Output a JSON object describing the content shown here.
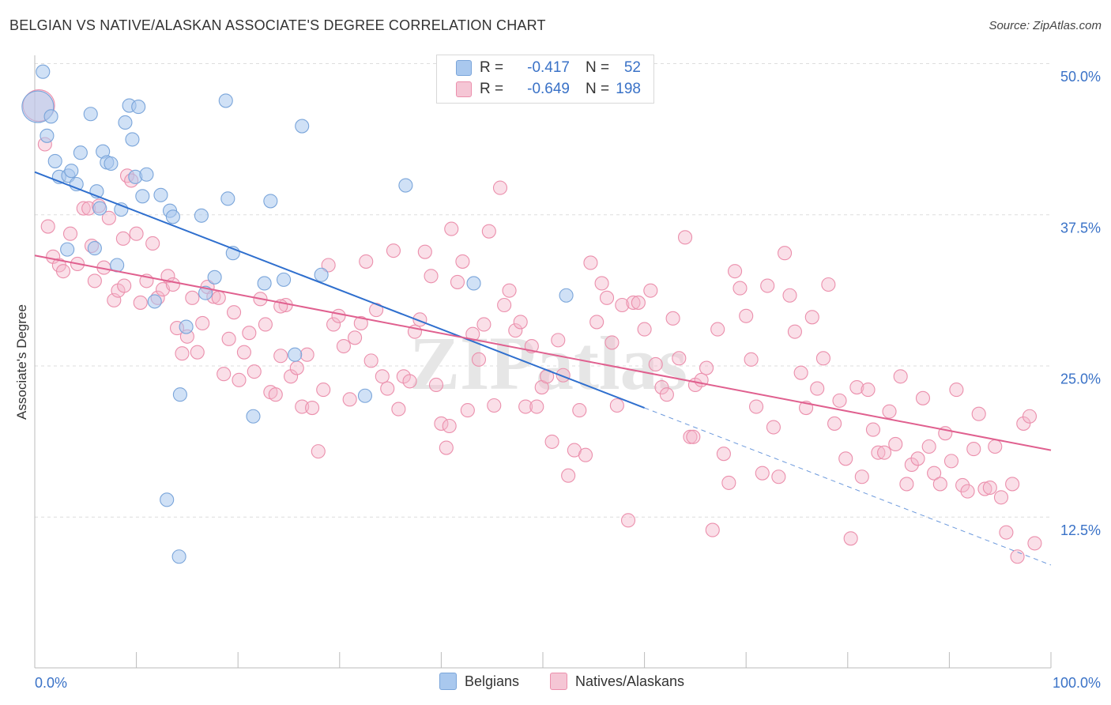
{
  "title": "BELGIAN VS NATIVE/ALASKAN ASSOCIATE'S DEGREE CORRELATION CHART",
  "source": "Source: ZipAtlas.com",
  "watermark": "ZIPatlas",
  "legend_top": {
    "rows": [
      {
        "r_label": "R =",
        "r_value": "-0.417",
        "n_label": "N =",
        "n_value": "52"
      },
      {
        "r_label": "R =",
        "r_value": "-0.649",
        "n_label": "N =",
        "n_value": "198"
      }
    ]
  },
  "legend_bottom": {
    "belgians": "Belgians",
    "natives": "Natives/Alaskans"
  },
  "colors": {
    "blue_fill": "#a9c8ee",
    "blue_stroke": "#7aa5da",
    "blue_line": "#2f6fce",
    "pink_fill": "#f5b9cc",
    "pink_stroke": "#eb8fac",
    "pink_line": "#e0608f",
    "value_text": "#3a72c7",
    "grid": "#dddddd"
  },
  "chart_data": {
    "type": "scatter",
    "title": "BELGIAN VS NATIVE/ALASKAN ASSOCIATE'S DEGREE CORRELATION CHART",
    "ylabel": "Associate's Degree",
    "xlabel": "",
    "xlim": [
      0,
      100
    ],
    "ylim": [
      0,
      50
    ],
    "x_tick_labels": [
      "0.0%",
      "100.0%"
    ],
    "y_ticks": [
      {
        "value": 50.0,
        "label": "50.0%"
      },
      {
        "value": 37.5,
        "label": "37.5%"
      },
      {
        "value": 25.0,
        "label": "25.0%"
      },
      {
        "value": 12.5,
        "label": "12.5%"
      }
    ],
    "grid": true,
    "legend_placement": "top-center",
    "series": [
      {
        "name": "Belgians",
        "R": -0.417,
        "N": 52,
        "trend": {
          "x0": 0,
          "y0": 41.0,
          "x1": 60,
          "y1": 21.5,
          "dashed_to_x": 100,
          "dashed_to_y": 8.5
        },
        "points": [
          [
            0.8,
            49.3
          ],
          [
            0.3,
            46.4,
            "L"
          ],
          [
            1.2,
            44.0
          ],
          [
            1.6,
            45.6
          ],
          [
            2.0,
            41.9
          ],
          [
            2.4,
            40.6
          ],
          [
            3.3,
            40.7
          ],
          [
            3.6,
            41.1
          ],
          [
            4.1,
            40.0
          ],
          [
            4.5,
            42.6
          ],
          [
            5.5,
            45.8
          ],
          [
            5.9,
            34.7
          ],
          [
            6.1,
            39.4
          ],
          [
            6.4,
            38.0
          ],
          [
            6.7,
            42.7
          ],
          [
            7.1,
            41.8
          ],
          [
            7.5,
            41.7
          ],
          [
            8.1,
            33.3
          ],
          [
            8.5,
            37.9
          ],
          [
            8.9,
            45.1
          ],
          [
            9.3,
            46.5
          ],
          [
            9.6,
            43.7
          ],
          [
            9.9,
            40.6
          ],
          [
            10.2,
            46.4
          ],
          [
            10.6,
            39.0
          ],
          [
            11.0,
            40.8
          ],
          [
            11.8,
            30.3
          ],
          [
            12.4,
            39.1
          ],
          [
            13.0,
            13.9
          ],
          [
            13.3,
            37.8
          ],
          [
            13.6,
            37.3
          ],
          [
            14.3,
            22.6
          ],
          [
            14.9,
            28.2
          ],
          [
            16.4,
            37.4
          ],
          [
            16.8,
            31.0
          ],
          [
            17.7,
            32.3
          ],
          [
            18.8,
            46.9
          ],
          [
            19.0,
            38.8
          ],
          [
            19.5,
            34.3
          ],
          [
            21.5,
            20.8
          ],
          [
            22.6,
            31.8
          ],
          [
            23.2,
            38.6
          ],
          [
            24.5,
            32.1
          ],
          [
            25.6,
            25.9
          ],
          [
            26.3,
            44.8
          ],
          [
            28.2,
            32.5
          ],
          [
            32.5,
            22.5
          ],
          [
            36.5,
            39.9
          ],
          [
            43.2,
            31.8
          ],
          [
            52.3,
            30.8
          ],
          [
            14.2,
            9.2
          ],
          [
            3.2,
            34.6
          ]
        ]
      },
      {
        "name": "Natives/Alaskans",
        "R": -0.649,
        "N": 198,
        "trend": {
          "x0": 0,
          "y0": 34.1,
          "x1": 100,
          "y1": 18.0
        },
        "points": [
          [
            0.4,
            46.5,
            "L"
          ],
          [
            1.0,
            43.3
          ],
          [
            1.3,
            36.5
          ],
          [
            1.8,
            34.0
          ],
          [
            2.4,
            33.3
          ],
          [
            2.8,
            32.8
          ],
          [
            3.5,
            35.9
          ],
          [
            4.2,
            33.4
          ],
          [
            4.8,
            38.0
          ],
          [
            5.3,
            38.0
          ],
          [
            5.6,
            34.9
          ],
          [
            5.9,
            32.0
          ],
          [
            6.3,
            38.2
          ],
          [
            6.8,
            33.1
          ],
          [
            7.3,
            37.2
          ],
          [
            7.8,
            30.4
          ],
          [
            8.2,
            31.2
          ],
          [
            8.7,
            35.5
          ],
          [
            9.1,
            40.7
          ],
          [
            9.5,
            40.3
          ],
          [
            10.0,
            35.9
          ],
          [
            10.4,
            30.2
          ],
          [
            11.0,
            32.0
          ],
          [
            11.6,
            35.1
          ],
          [
            12.1,
            30.6
          ],
          [
            12.6,
            31.3
          ],
          [
            13.1,
            32.4
          ],
          [
            13.6,
            31.7
          ],
          [
            14.0,
            28.1
          ],
          [
            14.5,
            26.0
          ],
          [
            15.0,
            27.4
          ],
          [
            15.5,
            30.6
          ],
          [
            16.0,
            26.1
          ],
          [
            16.5,
            28.5
          ],
          [
            17.0,
            31.5
          ],
          [
            17.6,
            30.7
          ],
          [
            18.1,
            30.6
          ],
          [
            18.6,
            24.3
          ],
          [
            19.1,
            27.2
          ],
          [
            19.6,
            29.4
          ],
          [
            20.1,
            23.8
          ],
          [
            20.6,
            26.1
          ],
          [
            21.1,
            27.7
          ],
          [
            21.6,
            24.5
          ],
          [
            22.2,
            30.5
          ],
          [
            22.7,
            28.4
          ],
          [
            23.2,
            22.8
          ],
          [
            23.7,
            22.6
          ],
          [
            24.2,
            25.8
          ],
          [
            24.7,
            30.0
          ],
          [
            25.2,
            24.1
          ],
          [
            25.8,
            24.8
          ],
          [
            26.3,
            21.6
          ],
          [
            26.8,
            25.9
          ],
          [
            27.3,
            21.5
          ],
          [
            27.9,
            17.9
          ],
          [
            28.4,
            23.0
          ],
          [
            28.9,
            33.3
          ],
          [
            29.4,
            28.4
          ],
          [
            29.9,
            29.1
          ],
          [
            30.4,
            26.6
          ],
          [
            31.0,
            22.2
          ],
          [
            31.5,
            27.3
          ],
          [
            32.1,
            28.5
          ],
          [
            32.6,
            33.6
          ],
          [
            33.1,
            25.4
          ],
          [
            33.6,
            29.6
          ],
          [
            34.2,
            24.1
          ],
          [
            34.7,
            23.1
          ],
          [
            35.3,
            34.5
          ],
          [
            35.8,
            21.4
          ],
          [
            36.3,
            24.1
          ],
          [
            36.9,
            23.7
          ],
          [
            37.4,
            27.8
          ],
          [
            37.9,
            28.8
          ],
          [
            38.4,
            34.4
          ],
          [
            39.0,
            32.4
          ],
          [
            39.5,
            23.4
          ],
          [
            40.0,
            20.2
          ],
          [
            40.5,
            18.2
          ],
          [
            41.0,
            36.3
          ],
          [
            41.6,
            31.9
          ],
          [
            42.1,
            33.6
          ],
          [
            42.6,
            21.3
          ],
          [
            43.1,
            27.6
          ],
          [
            43.7,
            25.5
          ],
          [
            44.2,
            28.4
          ],
          [
            44.7,
            36.1
          ],
          [
            45.2,
            21.7
          ],
          [
            45.8,
            39.7
          ],
          [
            46.2,
            30.0
          ],
          [
            46.7,
            31.2
          ],
          [
            47.3,
            27.9
          ],
          [
            47.8,
            28.6
          ],
          [
            48.3,
            21.6
          ],
          [
            48.9,
            26.6
          ],
          [
            49.4,
            21.6
          ],
          [
            49.9,
            23.2
          ],
          [
            50.4,
            24.1
          ],
          [
            50.9,
            18.7
          ],
          [
            51.5,
            27.1
          ],
          [
            52.0,
            24.2
          ],
          [
            52.5,
            15.9
          ],
          [
            53.1,
            18.0
          ],
          [
            53.6,
            21.3
          ],
          [
            54.2,
            17.6
          ],
          [
            54.7,
            33.5
          ],
          [
            55.3,
            28.6
          ],
          [
            55.8,
            31.8
          ],
          [
            56.3,
            30.6
          ],
          [
            56.8,
            26.9
          ],
          [
            57.3,
            21.7
          ],
          [
            57.8,
            30.0
          ],
          [
            58.4,
            12.2
          ],
          [
            58.9,
            30.2
          ],
          [
            59.4,
            30.2
          ],
          [
            60.0,
            28.0
          ],
          [
            60.6,
            31.2
          ],
          [
            61.1,
            25.1
          ],
          [
            61.7,
            23.2
          ],
          [
            62.2,
            22.6
          ],
          [
            62.8,
            28.9
          ],
          [
            63.4,
            25.6
          ],
          [
            64.0,
            35.6
          ],
          [
            64.5,
            19.1
          ],
          [
            65.0,
            23.4
          ],
          [
            65.6,
            23.8
          ],
          [
            66.1,
            24.8
          ],
          [
            66.7,
            11.4
          ],
          [
            67.2,
            28.0
          ],
          [
            67.8,
            17.7
          ],
          [
            68.3,
            15.3
          ],
          [
            68.9,
            32.8
          ],
          [
            69.4,
            31.4
          ],
          [
            70.0,
            29.1
          ],
          [
            70.5,
            25.5
          ],
          [
            71.0,
            21.6
          ],
          [
            71.6,
            16.1
          ],
          [
            72.1,
            31.6
          ],
          [
            72.7,
            19.9
          ],
          [
            73.2,
            15.8
          ],
          [
            73.8,
            34.3
          ],
          [
            74.3,
            30.8
          ],
          [
            74.8,
            27.8
          ],
          [
            75.4,
            24.4
          ],
          [
            75.9,
            21.5
          ],
          [
            76.5,
            29.0
          ],
          [
            77.0,
            23.1
          ],
          [
            77.6,
            25.6
          ],
          [
            78.1,
            31.7
          ],
          [
            78.7,
            20.2
          ],
          [
            79.2,
            22.1
          ],
          [
            79.8,
            17.3
          ],
          [
            80.3,
            10.7
          ],
          [
            80.9,
            23.2
          ],
          [
            81.4,
            15.8
          ],
          [
            82.0,
            23.0
          ],
          [
            82.5,
            19.7
          ],
          [
            83.0,
            17.8
          ],
          [
            83.6,
            17.8
          ],
          [
            84.1,
            21.2
          ],
          [
            84.7,
            18.5
          ],
          [
            85.2,
            24.1
          ],
          [
            85.8,
            15.2
          ],
          [
            86.3,
            16.8
          ],
          [
            86.9,
            17.3
          ],
          [
            87.4,
            22.3
          ],
          [
            88.0,
            18.3
          ],
          [
            88.5,
            16.1
          ],
          [
            89.1,
            15.2
          ],
          [
            89.6,
            19.4
          ],
          [
            90.2,
            17.1
          ],
          [
            90.7,
            23.0
          ],
          [
            91.3,
            15.1
          ],
          [
            91.8,
            14.6
          ],
          [
            92.4,
            18.1
          ],
          [
            92.9,
            21.0
          ],
          [
            93.5,
            14.8
          ],
          [
            94.0,
            14.9
          ],
          [
            94.5,
            18.3
          ],
          [
            95.1,
            14.1
          ],
          [
            95.6,
            11.2
          ],
          [
            96.2,
            15.2
          ],
          [
            96.7,
            9.2
          ],
          [
            97.3,
            20.2
          ],
          [
            97.9,
            20.8
          ],
          [
            98.4,
            10.3
          ],
          [
            64.8,
            19.1
          ],
          [
            40.8,
            20.0
          ],
          [
            24.2,
            29.9
          ],
          [
            8.8,
            31.6
          ]
        ]
      }
    ]
  }
}
